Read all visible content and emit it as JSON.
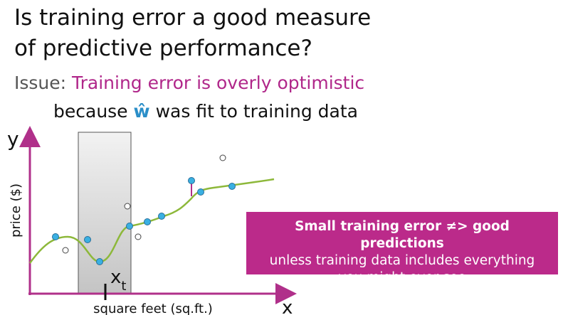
{
  "title": {
    "lines": [
      "Is training error a good measure",
      "of predictive performance?"
    ]
  },
  "issue": {
    "label": "Issue:",
    "text": "Training error is overly optimistic"
  },
  "because": {
    "before": "because",
    "symbol": "ŵ",
    "after": "was fit to training data"
  },
  "plot": {
    "y_axis": "y",
    "y_label": "price ($)",
    "x_axis": "x",
    "x_label": "square feet (sq.ft.)",
    "marker": {
      "base": "x",
      "sub": "t"
    }
  },
  "callout": {
    "headline": "Small training error ≠> good predictions",
    "body": "unless training data includes everything you might ever see"
  }
}
